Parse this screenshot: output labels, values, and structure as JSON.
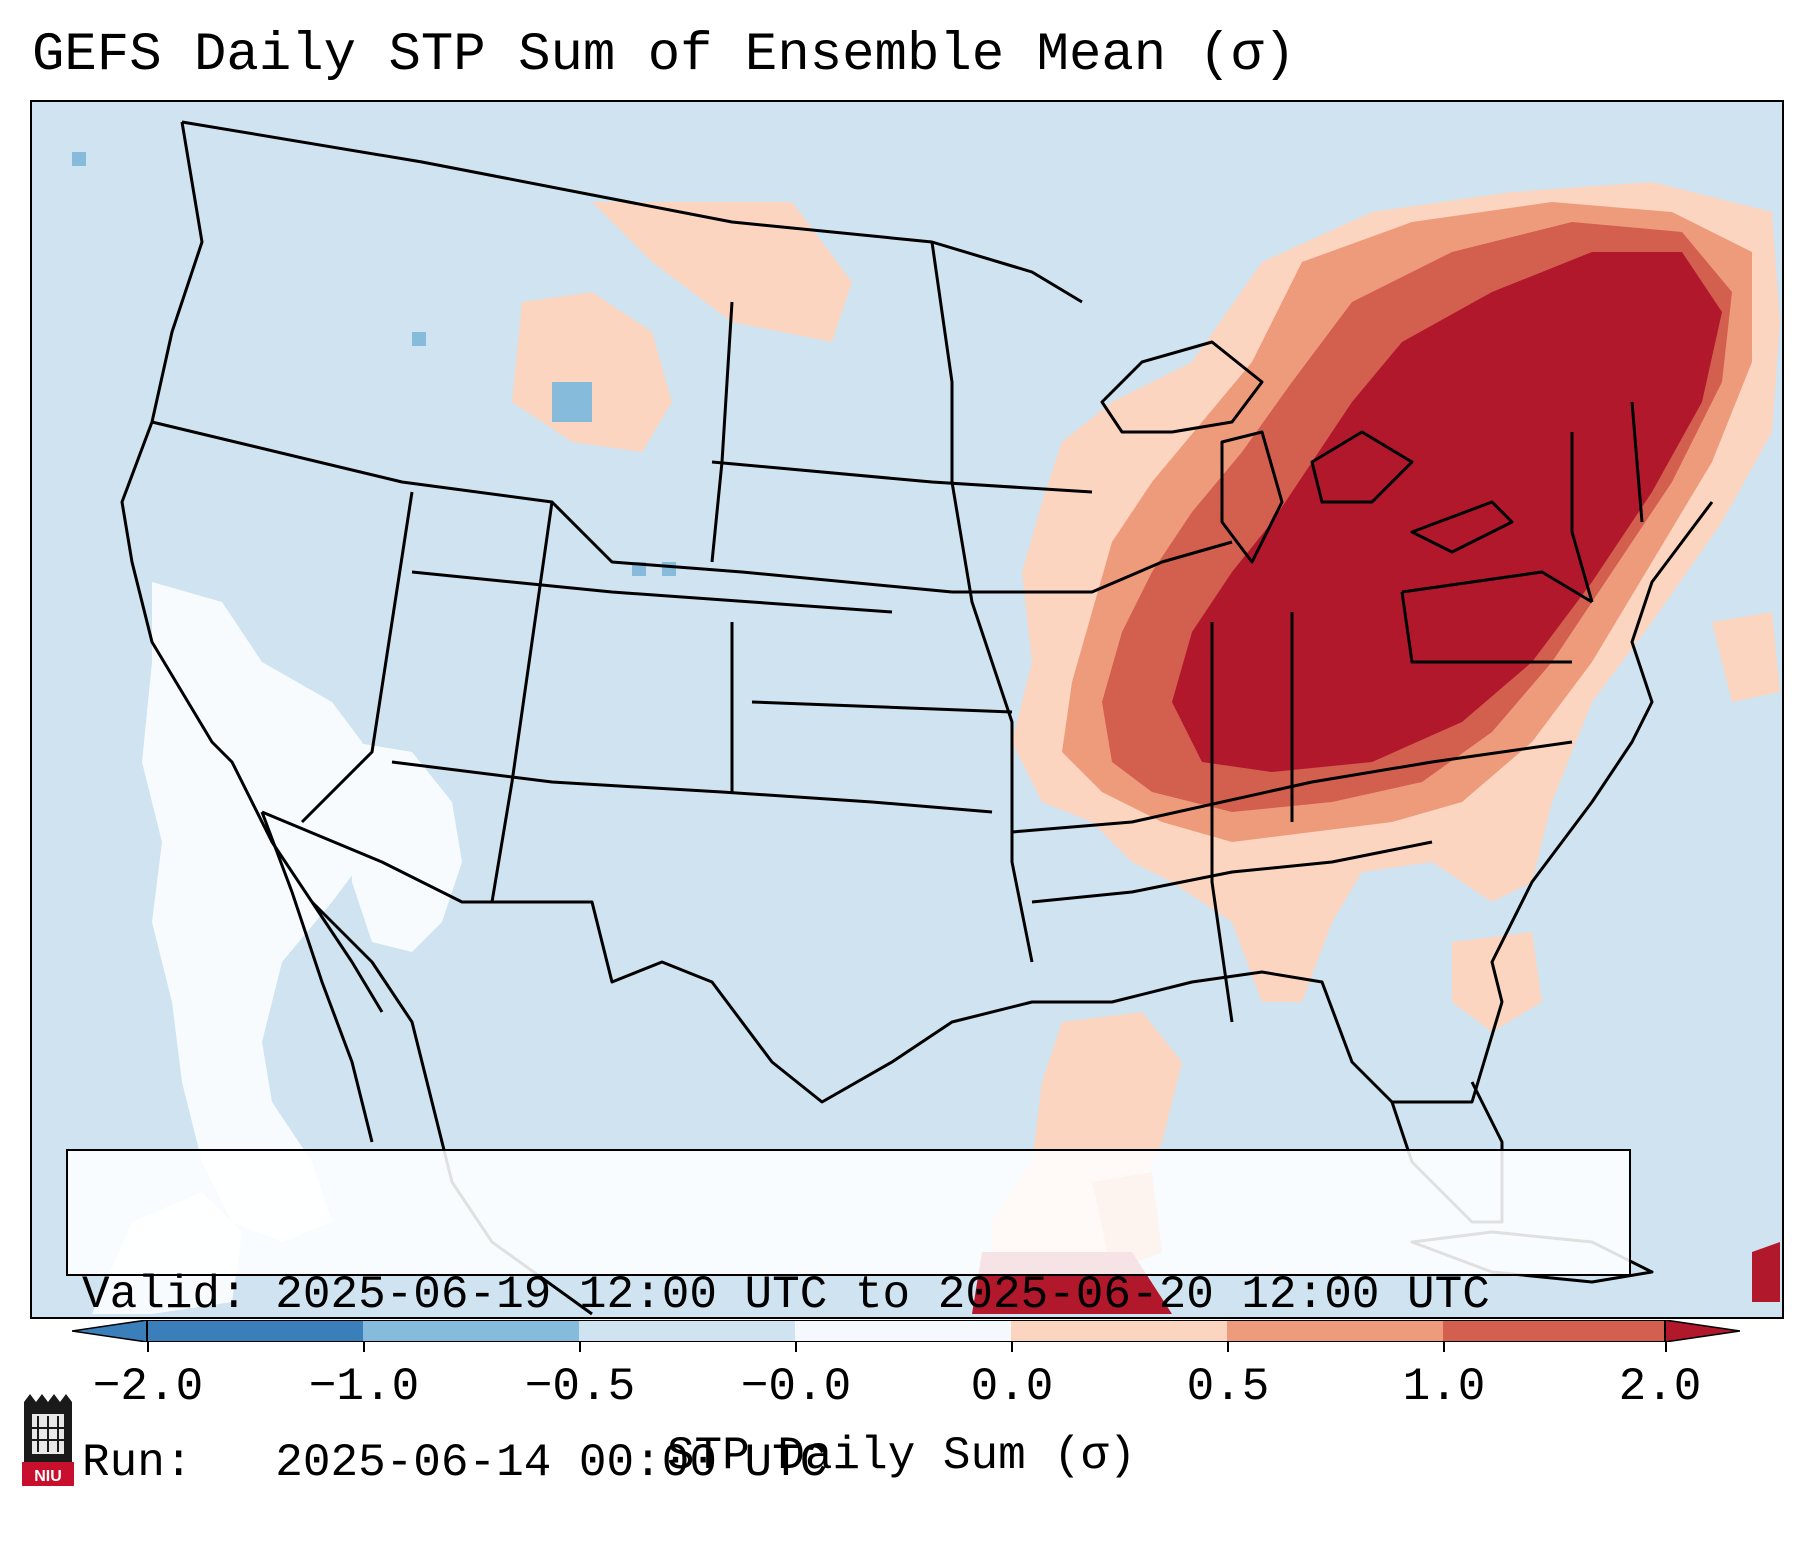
{
  "title": "GEFS Daily STP Sum of Ensemble Mean (σ)",
  "info": {
    "valid_label": "Valid:",
    "valid_value": "2025-06-19 12:00 UTC to 2025-06-20 12:00 UTC",
    "run_label": "Run:",
    "run_value": "2025-06-14 00:00 UTC"
  },
  "colorbar": {
    "label": "STP Daily Sum (σ)",
    "ticks": [
      "−2.0",
      "−1.0",
      "−0.5",
      "−0.0",
      "0.0",
      "0.5",
      "1.0",
      "2.0"
    ],
    "colors": [
      "#3b7fba",
      "#86bbdb",
      "#cfe3f0",
      "#f5f9fd",
      "#fbd5c0",
      "#ee9b7c",
      "#d35f4f",
      "#b2182b"
    ]
  },
  "map": {
    "region": "Contiguous United States",
    "ocean_color": "#cfe3f0",
    "border_color": "#000000"
  },
  "logo": {
    "text": "NIU"
  }
}
